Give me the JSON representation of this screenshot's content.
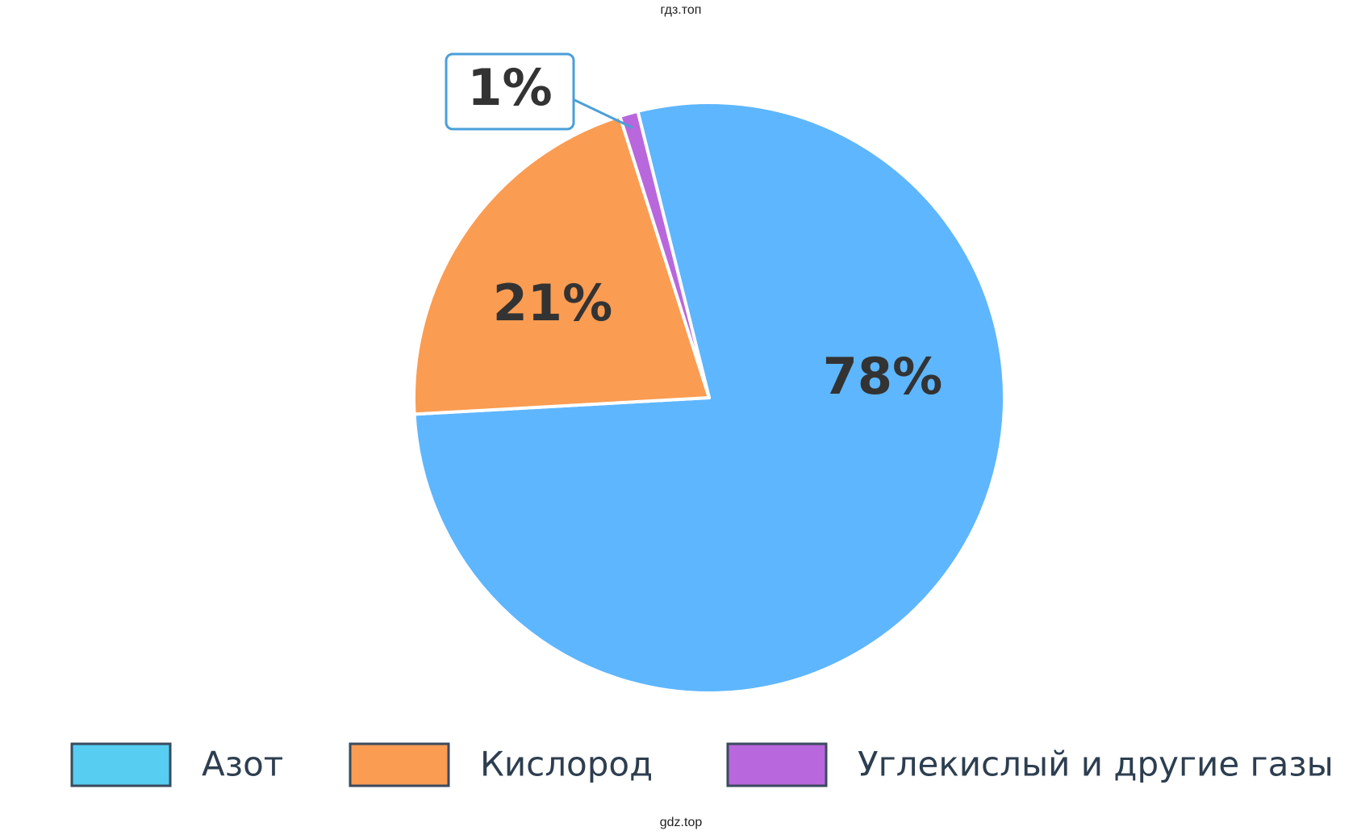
{
  "watermark_top": "гдз.топ",
  "watermark_bottom": "gdz.top",
  "chart_data": {
    "type": "pie",
    "categories": [
      "Азот",
      "Кислород",
      "Углекислый и другие газы"
    ],
    "values": [
      78,
      21,
      1
    ],
    "value_labels": [
      "78%",
      "21%",
      "1%"
    ],
    "colors": [
      "#5eb6fe",
      "#fa9c52",
      "#b967dc"
    ],
    "legend_colors": [
      "#56cdf1",
      "#fa9c52",
      "#b967dc"
    ],
    "legend": "bottom"
  }
}
